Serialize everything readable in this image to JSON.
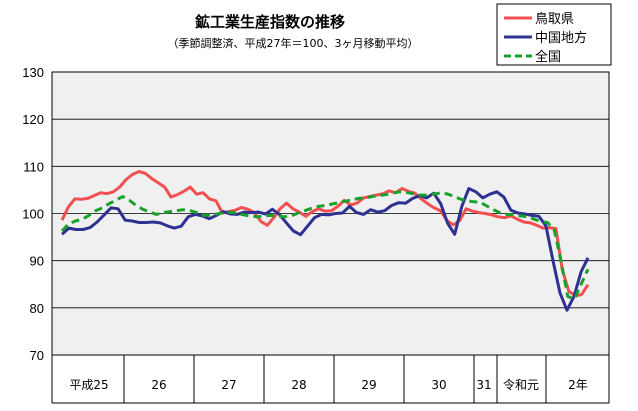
{
  "chart_data": {
    "type": "line",
    "title": "鉱工業生産指数の推移",
    "subtitle": "（季節調整済、平成27年＝100、3ヶ月移動平均）",
    "ylim": [
      70,
      130
    ],
    "yticks": [
      "70",
      "80",
      "90",
      "100",
      "110",
      "120",
      "130"
    ],
    "year_labels": [
      "平成25",
      "26",
      "27",
      "28",
      "29",
      "30",
      "31",
      "令和元",
      "2年"
    ],
    "legend_position": "top-right",
    "colors": {
      "tottori": "#f25050",
      "chugoku": "#2e3192",
      "national": "#16a22a"
    },
    "series": [
      {
        "name": "鳥取県",
        "key": "tottori",
        "dashed": false,
        "values": [
          98.6,
          101.4,
          103.1,
          103,
          103.2,
          103.8,
          104.4,
          104.2,
          104.6,
          105.6,
          107.2,
          108.3,
          108.9,
          108.5,
          107.4,
          106.5,
          105.6,
          103.5,
          104,
          104.7,
          105.6,
          104.1,
          104.4,
          103.1,
          102.7,
          100.1,
          100.4,
          100.7,
          101.3,
          100.9,
          100.2,
          98.3,
          97.5,
          99.1,
          101,
          102.2,
          101,
          100.3,
          99.4,
          100.4,
          101,
          100.5,
          100.6,
          101.5,
          102.8,
          101.8,
          102.2,
          103.3,
          103.6,
          103.9,
          104.2,
          104.8,
          104.4,
          105.3,
          104.7,
          104.3,
          103.1,
          102.1,
          101.2,
          100.6,
          98.5,
          97.6,
          98.5,
          101,
          100.5,
          100.2,
          100,
          99.7,
          99.3,
          99.1,
          99.5,
          98.8,
          98.2,
          98,
          97.5,
          96.9,
          97,
          96.8,
          88.1,
          83.5,
          82.6,
          82.8,
          84.9
        ]
      },
      {
        "name": "中国地方",
        "key": "chugoku",
        "dashed": false,
        "values": [
          95.6,
          96.9,
          96.6,
          96.6,
          97,
          98.2,
          99.7,
          101.2,
          101,
          98.6,
          98.4,
          98.1,
          98.1,
          98.2,
          98,
          97.4,
          96.9,
          97.3,
          99.3,
          99.8,
          99.5,
          98.9,
          99.6,
          100.4,
          99.9,
          99.8,
          100.3,
          100.2,
          100.3,
          99.9,
          100.9,
          99.8,
          98,
          96.3,
          95.5,
          97.3,
          99.1,
          99.8,
          99.7,
          100,
          100.1,
          101.5,
          100.2,
          99.8,
          100.8,
          100.3,
          100.6,
          101.7,
          102.3,
          102.2,
          103.2,
          103.8,
          103.3,
          104.3,
          102.1,
          97.9,
          95.6,
          101.5,
          105.3,
          104.6,
          103.3,
          104.1,
          104.6,
          103.5,
          100.7,
          100.1,
          99.9,
          99.6,
          99.4,
          97.4,
          90.1,
          83.2,
          79.5,
          82.4,
          87.6,
          90.6
        ]
      },
      {
        "name": "全国",
        "key": "national",
        "dashed": true,
        "values": [
          96.3,
          97.8,
          98.4,
          98.8,
          99.6,
          100.6,
          101.2,
          102.1,
          102.8,
          103.6,
          102.8,
          101.7,
          100.9,
          100.3,
          99.8,
          100.2,
          100.4,
          100.6,
          100.8,
          100.6,
          100.2,
          99.6,
          99.7,
          99.9,
          100.2,
          100.3,
          100,
          99.7,
          99.4,
          99.3,
          99.5,
          99.6,
          99.4,
          99.3,
          99.5,
          100.1,
          100.6,
          101.1,
          101.5,
          101.7,
          102,
          102.3,
          102.6,
          102.9,
          103.2,
          103.3,
          103.6,
          103.8,
          104,
          104.3,
          104.6,
          104.5,
          104.2,
          103.9,
          103.9,
          104.1,
          104.3,
          104.2,
          103.7,
          103.1,
          102.7,
          102.5,
          102.4,
          101.6,
          100.8,
          100.1,
          99.8,
          99.7,
          99.5,
          99.3,
          98.8,
          98.3,
          98.1,
          96.5,
          89.9,
          82.4,
          81.9,
          85.1,
          88.2
        ]
      }
    ]
  }
}
